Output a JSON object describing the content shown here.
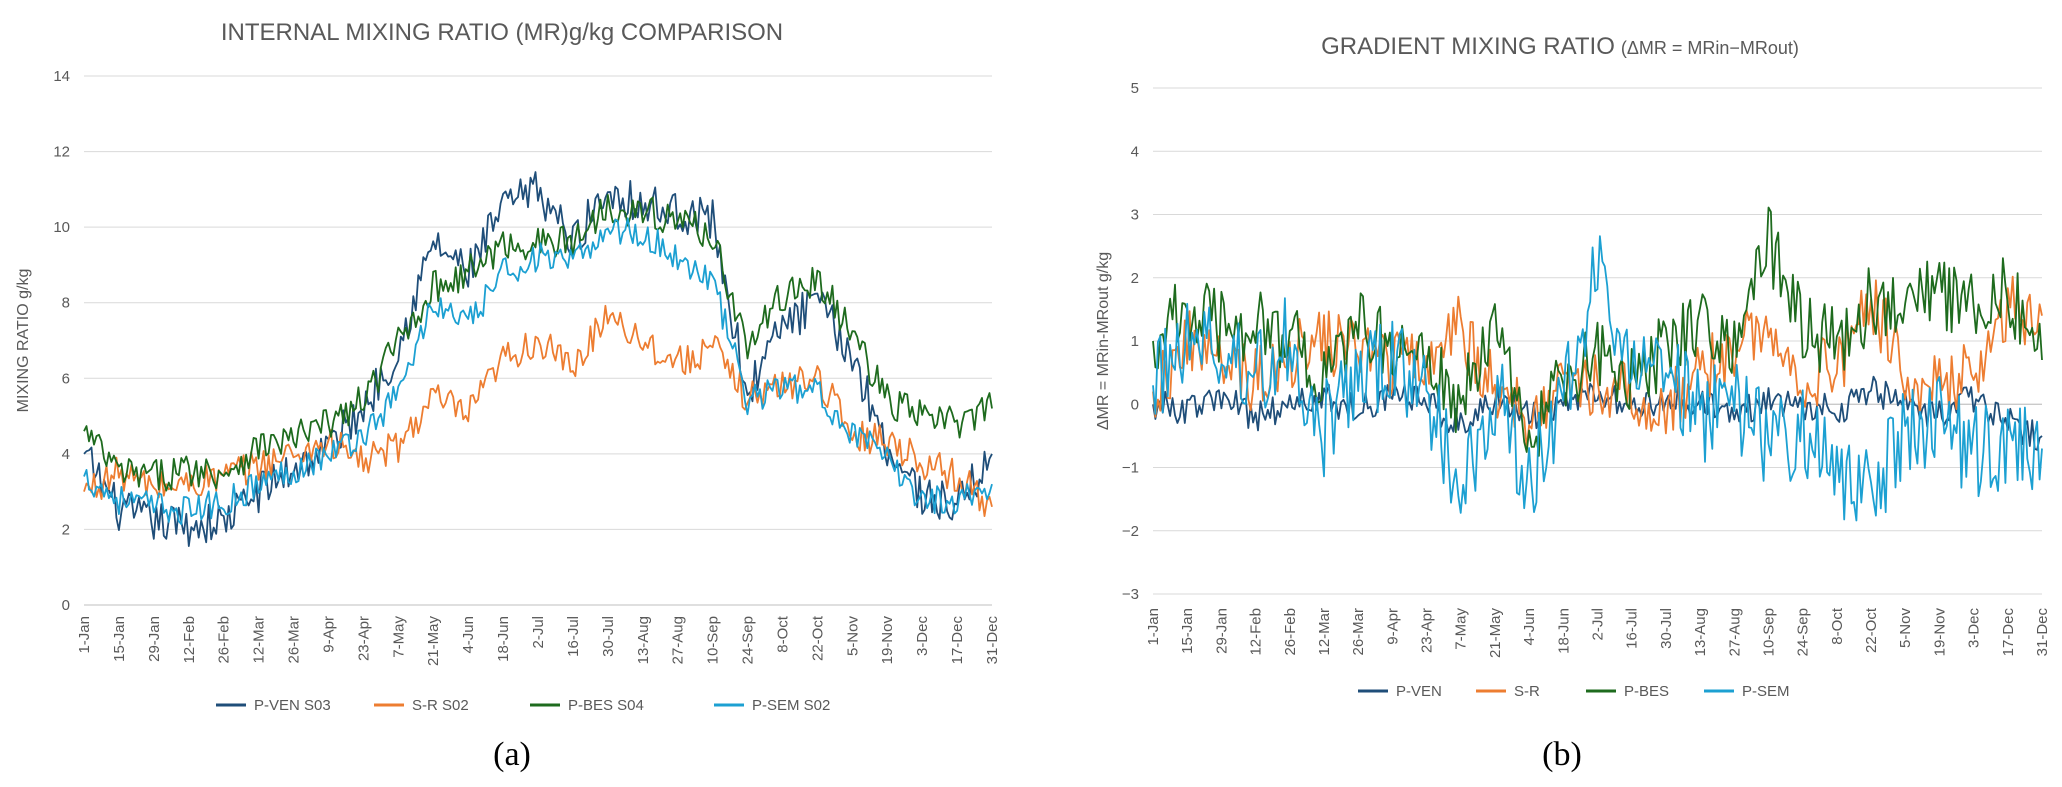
{
  "chart_data": [
    {
      "type": "line",
      "panel": "(a)",
      "title": "INTERNAL MIXING RATIO (MR)g/kg COMPARISON",
      "ylabel": "MIXING RATIO g/kg",
      "xlabel": "",
      "ylim": [
        0,
        14
      ],
      "yticks": [
        "0",
        "2",
        "4",
        "6",
        "8",
        "10",
        "12",
        "14"
      ],
      "categories": [
        "1-Jan",
        "15-Jan",
        "29-Jan",
        "12-Feb",
        "26-Feb",
        "12-Mar",
        "26-Mar",
        "9-Apr",
        "23-Apr",
        "7-May",
        "21-May",
        "4-Jun",
        "18-Jun",
        "2-Jul",
        "16-Jul",
        "30-Jul",
        "13-Aug",
        "27-Aug",
        "10-Sep",
        "24-Sep",
        "8-Oct",
        "22-Oct",
        "5-Nov",
        "19-Nov",
        "3-Dec",
        "17-Dec",
        "31-Dec"
      ],
      "grid": true,
      "legend_position": "bottom",
      "series": [
        {
          "name": "P-VEN S03",
          "color": "#1f4e79",
          "values": [
            4.0,
            2.5,
            2.2,
            2.1,
            2.2,
            3.0,
            3.6,
            4.2,
            5.2,
            6.8,
            9.6,
            8.8,
            10.5,
            11.0,
            9.6,
            11.0,
            10.6,
            10.4,
            10.2,
            5.6,
            7.4,
            8.0,
            6.6,
            4.2,
            2.9,
            2.6,
            4.0
          ]
        },
        {
          "name": "S-R S02",
          "color": "#ed7d31",
          "values": [
            3.0,
            3.5,
            3.1,
            3.2,
            3.4,
            3.7,
            4.0,
            4.3,
            3.8,
            4.2,
            5.5,
            5.0,
            6.5,
            7.0,
            6.2,
            7.8,
            7.0,
            6.4,
            6.8,
            5.5,
            5.8,
            6.1,
            4.5,
            4.4,
            3.8,
            3.4,
            2.6
          ]
        },
        {
          "name": "P-BES S04",
          "color": "#1e6b1e",
          "values": [
            4.6,
            3.5,
            3.4,
            3.6,
            3.5,
            4.2,
            4.4,
            4.8,
            5.4,
            7.0,
            8.4,
            8.8,
            9.5,
            9.6,
            9.6,
            10.6,
            10.4,
            10.2,
            9.8,
            6.8,
            8.2,
            8.6,
            7.2,
            5.4,
            5.0,
            4.8,
            5.2
          ]
        },
        {
          "name": "P-SEM S02",
          "color": "#1ca0d2",
          "values": [
            3.4,
            2.8,
            2.6,
            2.5,
            2.7,
            3.2,
            3.6,
            4.0,
            4.5,
            5.6,
            8.0,
            7.4,
            8.8,
            9.2,
            9.0,
            10.0,
            9.8,
            9.2,
            8.6,
            5.4,
            5.8,
            5.6,
            4.6,
            3.8,
            2.8,
            2.8,
            3.2
          ]
        }
      ]
    },
    {
      "type": "line",
      "panel": "(b)",
      "title": "GRADIENT MIXING RATIO",
      "title_suffix": "(ΔMR = MRin−MRout)",
      "ylabel": "ΔMR = MRin-MRout g/kg",
      "xlabel": "",
      "ylim": [
        -3,
        5
      ],
      "yticks": [
        "−3",
        "−2",
        "−1",
        "0",
        "1",
        "2",
        "3",
        "4",
        "5"
      ],
      "categories": [
        "1-Jan",
        "15-Jan",
        "29-Jan",
        "12-Feb",
        "26-Feb",
        "12-Mar",
        "26-Mar",
        "9-Apr",
        "23-Apr",
        "7-May",
        "21-May",
        "4-Jun",
        "18-Jun",
        "2-Jul",
        "16-Jul",
        "30-Jul",
        "13-Aug",
        "27-Aug",
        "10-Sep",
        "24-Sep",
        "8-Oct",
        "22-Oct",
        "5-Nov",
        "19-Nov",
        "3-Dec",
        "17-Dec",
        "31-Dec"
      ],
      "grid": true,
      "legend_position": "bottom",
      "series": [
        {
          "name": "P-VEN",
          "color": "#1f4e79",
          "values": [
            0.0,
            -0.1,
            0.1,
            -0.2,
            0.0,
            0.1,
            -0.1,
            0.2,
            0.0,
            -0.3,
            0.1,
            -0.2,
            0.0,
            0.2,
            -0.1,
            0.1,
            0.0,
            -0.2,
            0.1,
            0.0,
            -0.1,
            0.2,
            0.0,
            -0.2,
            0.1,
            -0.3,
            -0.5
          ]
        },
        {
          "name": "S-R",
          "color": "#ed7d31",
          "values": [
            0.2,
            1.0,
            0.6,
            0.4,
            0.8,
            1.0,
            0.9,
            0.6,
            0.8,
            1.2,
            0.2,
            -0.3,
            0.5,
            0.3,
            0.1,
            0.0,
            0.4,
            0.9,
            1.2,
            0.4,
            0.6,
            1.6,
            0.5,
            0.2,
            0.6,
            1.5,
            1.4
          ]
        },
        {
          "name": "P-BES",
          "color": "#1e6b1e",
          "values": [
            1.0,
            1.5,
            1.2,
            1.3,
            1.1,
            0.3,
            1.2,
            1.0,
            0.6,
            0.0,
            1.2,
            -0.6,
            0.3,
            0.8,
            0.4,
            0.9,
            1.4,
            1.0,
            2.6,
            1.2,
            1.0,
            1.6,
            1.8,
            1.7,
            1.5,
            1.8,
            0.7
          ]
        },
        {
          "name": "P-SEM",
          "color": "#1ca0d2",
          "values": [
            0.3,
            1.1,
            0.8,
            0.5,
            1.0,
            -0.4,
            0.4,
            0.6,
            0.2,
            -1.5,
            0.2,
            -1.2,
            0.0,
            2.2,
            0.4,
            0.6,
            -0.2,
            0.0,
            -0.6,
            -0.5,
            -1.0,
            -1.4,
            -0.4,
            -0.2,
            -0.8,
            -0.6,
            -0.7
          ]
        }
      ]
    }
  ]
}
